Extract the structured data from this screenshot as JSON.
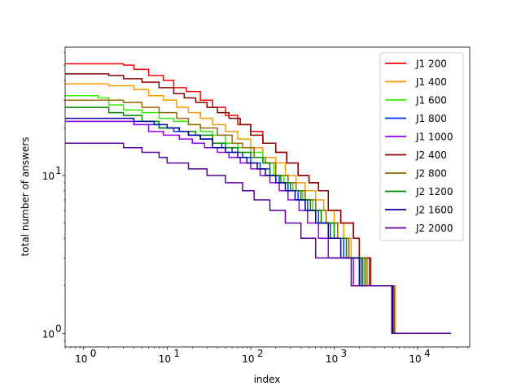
{
  "chart_data": {
    "type": "line",
    "xscale": "log",
    "yscale": "log",
    "xlabel": "index",
    "ylabel": "total number of answers",
    "xlim": [
      0.6,
      42000
    ],
    "ylim": [
      0.82,
      65
    ],
    "xticks": [
      {
        "v": 1,
        "label": "10",
        "exp": "0"
      },
      {
        "v": 10,
        "label": "10",
        "exp": "1"
      },
      {
        "v": 100,
        "label": "10",
        "exp": "2"
      },
      {
        "v": 1000,
        "label": "10",
        "exp": "3"
      },
      {
        "v": 10000,
        "label": "10",
        "exp": "4"
      }
    ],
    "yticks": [
      {
        "v": 1,
        "label": "10",
        "exp": "0"
      },
      {
        "v": 10,
        "label": "10",
        "exp": "1"
      }
    ],
    "legend_position": "top-right",
    "drawstyle": "steps-post",
    "series": [
      {
        "name": "J1 200",
        "color": "#ff0000",
        "x_end": 25000,
        "points": [
          [
            0.6,
            51
          ],
          [
            3,
            50
          ],
          [
            4,
            47
          ],
          [
            6,
            43
          ],
          [
            9,
            40
          ],
          [
            12,
            36
          ],
          [
            17,
            34
          ],
          [
            25,
            30
          ],
          [
            35,
            27
          ],
          [
            50,
            24
          ],
          [
            70,
            21
          ],
          [
            100,
            19
          ],
          [
            140,
            16
          ],
          [
            200,
            14
          ],
          [
            270,
            12
          ],
          [
            370,
            10
          ],
          [
            500,
            9
          ],
          [
            650,
            8
          ],
          [
            850,
            6
          ],
          [
            1200,
            5
          ],
          [
            1700,
            4
          ],
          [
            2000,
            3
          ],
          [
            2750,
            2
          ],
          [
            5300,
            1
          ]
        ]
      },
      {
        "name": "J1 400",
        "color": "#ff9900",
        "x_end": 25000,
        "points": [
          [
            0.6,
            38
          ],
          [
            2,
            37
          ],
          [
            4,
            35
          ],
          [
            6,
            32
          ],
          [
            9,
            30
          ],
          [
            13,
            27
          ],
          [
            18,
            25
          ],
          [
            25,
            23
          ],
          [
            35,
            21
          ],
          [
            50,
            19
          ],
          [
            70,
            17
          ],
          [
            100,
            15
          ],
          [
            140,
            13
          ],
          [
            200,
            12
          ],
          [
            260,
            10
          ],
          [
            350,
            9
          ],
          [
            450,
            8
          ],
          [
            600,
            7
          ],
          [
            750,
            6
          ],
          [
            1000,
            5
          ],
          [
            1300,
            4
          ],
          [
            1600,
            3
          ],
          [
            2500,
            2
          ],
          [
            5400,
            1
          ]
        ]
      },
      {
        "name": "J1 600",
        "color": "#33ee00",
        "x_end": 25000,
        "points": [
          [
            0.6,
            32
          ],
          [
            1.5,
            31
          ],
          [
            2,
            28
          ],
          [
            3,
            26
          ],
          [
            5,
            25
          ],
          [
            8,
            23
          ],
          [
            12,
            22
          ],
          [
            18,
            21
          ],
          [
            25,
            19
          ],
          [
            35,
            18
          ],
          [
            50,
            16
          ],
          [
            70,
            15
          ],
          [
            100,
            14
          ],
          [
            140,
            12
          ],
          [
            190,
            10
          ],
          [
            250,
            9
          ],
          [
            320,
            8
          ],
          [
            420,
            7
          ],
          [
            550,
            6
          ],
          [
            700,
            5
          ],
          [
            1000,
            4
          ],
          [
            1500,
            3
          ],
          [
            2300,
            2
          ],
          [
            5100,
            1
          ]
        ]
      },
      {
        "name": "J1 800",
        "color": "#0033ff",
        "x_end": 25000,
        "points": [
          [
            0.6,
            22
          ],
          [
            4,
            21
          ],
          [
            8,
            20
          ],
          [
            12,
            19
          ],
          [
            18,
            18
          ],
          [
            25,
            17
          ],
          [
            35,
            16
          ],
          [
            45,
            15
          ],
          [
            60,
            14
          ],
          [
            80,
            13
          ],
          [
            100,
            12
          ],
          [
            130,
            11
          ],
          [
            170,
            10
          ],
          [
            220,
            9
          ],
          [
            280,
            8
          ],
          [
            370,
            7
          ],
          [
            480,
            6
          ],
          [
            650,
            5
          ],
          [
            900,
            4
          ],
          [
            1300,
            3
          ],
          [
            2100,
            2
          ],
          [
            5000,
            1
          ]
        ]
      },
      {
        "name": "J1 1000",
        "color": "#9900ee",
        "x_end": 25000,
        "points": [
          [
            0.6,
            22
          ],
          [
            4,
            21
          ],
          [
            6,
            19
          ],
          [
            9,
            18
          ],
          [
            14,
            17
          ],
          [
            20,
            16
          ],
          [
            28,
            15
          ],
          [
            40,
            14
          ],
          [
            55,
            13
          ],
          [
            75,
            12
          ],
          [
            100,
            11
          ],
          [
            130,
            10
          ],
          [
            170,
            9
          ],
          [
            220,
            8
          ],
          [
            280,
            7
          ],
          [
            380,
            6
          ],
          [
            480,
            5
          ],
          [
            650,
            4
          ],
          [
            850,
            3
          ],
          [
            1700,
            2
          ],
          [
            4900,
            1
          ]
        ]
      },
      {
        "name": "J2 400",
        "color": "#880000",
        "x_end": 25000,
        "points": [
          [
            0.6,
            44
          ],
          [
            2,
            43
          ],
          [
            3,
            41
          ],
          [
            5,
            39
          ],
          [
            8,
            36
          ],
          [
            12,
            33
          ],
          [
            16,
            31
          ],
          [
            22,
            29
          ],
          [
            30,
            27
          ],
          [
            40,
            25
          ],
          [
            55,
            23
          ],
          [
            75,
            21
          ],
          [
            100,
            18
          ],
          [
            140,
            16
          ],
          [
            200,
            14
          ],
          [
            270,
            12
          ],
          [
            370,
            10
          ],
          [
            500,
            9
          ],
          [
            650,
            8
          ],
          [
            850,
            6
          ],
          [
            1200,
            5
          ],
          [
            1700,
            4
          ],
          [
            2000,
            3
          ],
          [
            2650,
            2
          ],
          [
            5200,
            1
          ]
        ]
      },
      {
        "name": "J2 800",
        "color": "#996600",
        "x_end": 25000,
        "points": [
          [
            0.6,
            30
          ],
          [
            3,
            29
          ],
          [
            5,
            27
          ],
          [
            8,
            25
          ],
          [
            13,
            23
          ],
          [
            18,
            21
          ],
          [
            25,
            20
          ],
          [
            40,
            18
          ],
          [
            60,
            16
          ],
          [
            80,
            15
          ],
          [
            110,
            13
          ],
          [
            150,
            12
          ],
          [
            200,
            10
          ],
          [
            280,
            9
          ],
          [
            350,
            8
          ],
          [
            450,
            7
          ],
          [
            600,
            6
          ],
          [
            800,
            5
          ],
          [
            1100,
            4
          ],
          [
            1500,
            3
          ],
          [
            2400,
            2
          ],
          [
            5200,
            1
          ]
        ]
      },
      {
        "name": "J2 1200",
        "color": "#008800",
        "x_end": 25000,
        "points": [
          [
            0.6,
            27
          ],
          [
            2,
            25
          ],
          [
            3,
            24
          ],
          [
            5,
            22
          ],
          [
            8,
            20
          ],
          [
            14,
            19
          ],
          [
            22,
            18
          ],
          [
            35,
            16
          ],
          [
            50,
            15
          ],
          [
            70,
            14
          ],
          [
            100,
            13
          ],
          [
            140,
            12
          ],
          [
            170,
            10
          ],
          [
            230,
            9
          ],
          [
            300,
            8
          ],
          [
            400,
            7
          ],
          [
            520,
            6
          ],
          [
            700,
            5
          ],
          [
            1000,
            4
          ],
          [
            1400,
            3
          ],
          [
            2200,
            2
          ],
          [
            5100,
            1
          ]
        ]
      },
      {
        "name": "J2 1600",
        "color": "#000099",
        "x_end": 25000,
        "points": [
          [
            0.6,
            23
          ],
          [
            4,
            22
          ],
          [
            7,
            21
          ],
          [
            10,
            20
          ],
          [
            14,
            19
          ],
          [
            18,
            18
          ],
          [
            25,
            17
          ],
          [
            35,
            15
          ],
          [
            50,
            14
          ],
          [
            70,
            13
          ],
          [
            90,
            12
          ],
          [
            120,
            11
          ],
          [
            150,
            10
          ],
          [
            200,
            9
          ],
          [
            260,
            8
          ],
          [
            340,
            7
          ],
          [
            450,
            6
          ],
          [
            600,
            5
          ],
          [
            850,
            4
          ],
          [
            1200,
            3
          ],
          [
            2000,
            2
          ],
          [
            5000,
            1
          ]
        ]
      },
      {
        "name": "J2 2000",
        "color": "#550099",
        "x_end": 25000,
        "points": [
          [
            0.6,
            16
          ],
          [
            3,
            15
          ],
          [
            5,
            14
          ],
          [
            8,
            13
          ],
          [
            10,
            12
          ],
          [
            18,
            11
          ],
          [
            30,
            10
          ],
          [
            50,
            9
          ],
          [
            80,
            8
          ],
          [
            110,
            7
          ],
          [
            170,
            6
          ],
          [
            260,
            5
          ],
          [
            400,
            4
          ],
          [
            600,
            3
          ],
          [
            1600,
            2
          ],
          [
            4900,
            1
          ]
        ]
      }
    ]
  }
}
